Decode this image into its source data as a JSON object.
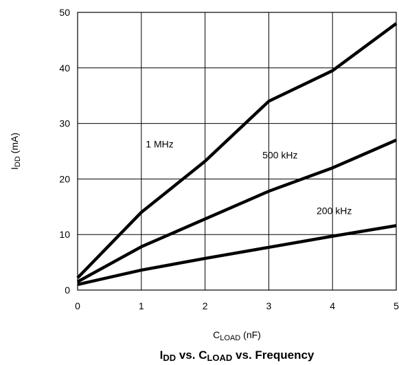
{
  "chart_data": {
    "type": "line",
    "title": {
      "parts": [
        {
          "text": "I",
          "sub": false
        },
        {
          "text": "DD",
          "sub": true
        },
        {
          "text": " vs. C",
          "sub": false
        },
        {
          "text": "LOAD",
          "sub": true
        },
        {
          "text": " vs. Frequency",
          "sub": false
        }
      ]
    },
    "xlabel": {
      "parts": [
        {
          "text": "C",
          "sub": false
        },
        {
          "text": "LOAD",
          "sub": true
        },
        {
          "text": " (nF)",
          "sub": false
        }
      ]
    },
    "ylabel": {
      "parts": [
        {
          "text": "I",
          "sub": false
        },
        {
          "text": "DD",
          "sub": true
        },
        {
          "text": " (mA)",
          "sub": false
        }
      ]
    },
    "xlim": [
      0,
      5
    ],
    "ylim": [
      0,
      50
    ],
    "xticks": [
      0,
      1,
      2,
      3,
      4,
      5
    ],
    "yticks": [
      0,
      10,
      20,
      30,
      40,
      50
    ],
    "grid": true,
    "line_color": "#000000",
    "series": [
      {
        "name": "1 MHz",
        "x": [
          0,
          1,
          2,
          3,
          4,
          5
        ],
        "y": [
          2.2,
          14,
          23.2,
          34,
          39.5,
          48
        ]
      },
      {
        "name": "500 kHz",
        "x": [
          0,
          1,
          2,
          3,
          4,
          5
        ],
        "y": [
          1.5,
          7.8,
          12.8,
          17.8,
          22,
          27
        ]
      },
      {
        "name": "200 kHz",
        "x": [
          0,
          1,
          2,
          3,
          4,
          5
        ],
        "y": [
          1,
          3.6,
          5.7,
          7.7,
          9.7,
          11.6
        ]
      }
    ]
  }
}
